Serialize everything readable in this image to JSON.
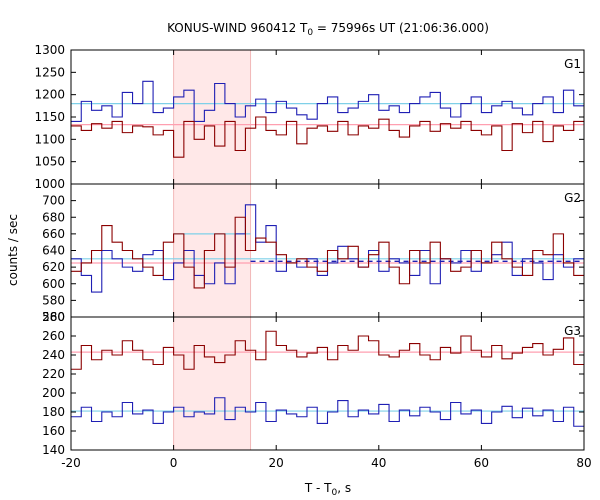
{
  "chart_data": {
    "type": "line",
    "title": "KONUS-WIND 960412 T",
    "title_sub": "0",
    "title_rest": " = 75996s UT (21:06:36.000)",
    "xlabel": "T - T",
    "xlabel_sub": "0",
    "xlabel_rest": ", s",
    "ylabel": "counts / sec",
    "xlim": [
      -20,
      80
    ],
    "xticks": [
      -20,
      0,
      20,
      40,
      60,
      80
    ],
    "bin_width": 2,
    "highlight": {
      "x0": 0,
      "x1": 15,
      "color": "#ffe8e8"
    },
    "colors": {
      "red": "#8b0000",
      "blue": "#1f1fb4",
      "pink": "#ff9fb0",
      "cyan": "#7fd0e8",
      "dash": "#1f1fb4"
    },
    "panels": [
      {
        "name": "G1",
        "ylim": [
          1000,
          1300
        ],
        "yticks": [
          1000,
          1050,
          1100,
          1150,
          1200,
          1250,
          1300
        ],
        "series": [
          {
            "color": "blue",
            "values": [
              1140,
              1185,
              1165,
              1175,
              1150,
              1205,
              1180,
              1230,
              1160,
              1170,
              1195,
              1210,
              1140,
              1165,
              1225,
              1180,
              1150,
              1175,
              1190,
              1160,
              1185,
              1170,
              1155,
              1145,
              1180,
              1195,
              1160,
              1170,
              1185,
              1200,
              1165,
              1175,
              1160,
              1180,
              1195,
              1205,
              1170,
              1150,
              1180,
              1195,
              1160,
              1175,
              1185,
              1170,
              1155,
              1180,
              1195,
              1160,
              1210,
              1175
            ]
          },
          {
            "color": "red",
            "values": [
              1130,
              1120,
              1135,
              1125,
              1140,
              1115,
              1130,
              1128,
              1110,
              1120,
              1060,
              1140,
              1100,
              1130,
              1085,
              1140,
              1075,
              1125,
              1150,
              1120,
              1110,
              1140,
              1090,
              1125,
              1130,
              1118,
              1140,
              1110,
              1130,
              1125,
              1145,
              1120,
              1105,
              1130,
              1140,
              1118,
              1135,
              1125,
              1140,
              1120,
              1110,
              1130,
              1075,
              1135,
              1115,
              1140,
              1095,
              1130,
              1120,
              1140
            ]
          }
        ],
        "refs": [
          {
            "color": "cyan",
            "value": 1180,
            "x0": -20,
            "x1": 80
          },
          {
            "color": "pink",
            "value": 1133,
            "x0": -20,
            "x1": 80
          }
        ]
      },
      {
        "name": "G2",
        "ylim": [
          560,
          720
        ],
        "yticks": [
          560,
          580,
          600,
          620,
          640,
          660,
          680,
          700
        ],
        "series": [
          {
            "color": "blue",
            "values": [
              630,
              610,
              590,
              640,
              630,
              620,
              615,
              635,
              640,
              605,
              625,
              640,
              610,
              600,
              625,
              600,
              660,
              695,
              650,
              670,
              615,
              625,
              620,
              630,
              610,
              625,
              645,
              630,
              620,
              640,
              615,
              630,
              625,
              610,
              640,
              600,
              630,
              625,
              640,
              615,
              625,
              635,
              650,
              610,
              630,
              625,
              605,
              635,
              620,
              630
            ]
          },
          {
            "color": "red",
            "values": [
              615,
              625,
              640,
              670,
              650,
              640,
              630,
              620,
              610,
              650,
              660,
              620,
              595,
              640,
              660,
              620,
              680,
              640,
              655,
              650,
              635,
              625,
              630,
              620,
              615,
              640,
              630,
              645,
              620,
              635,
              650,
              620,
              600,
              640,
              625,
              650,
              630,
              615,
              620,
              640,
              625,
              650,
              630,
              620,
              610,
              640,
              635,
              660,
              625,
              610
            ]
          }
        ],
        "refs": [
          {
            "color": "cyan",
            "value": 630,
            "x0": -20,
            "x1": 80
          },
          {
            "color": "pink",
            "value": 625,
            "x0": -20,
            "x1": 80
          },
          {
            "color": "cyan",
            "value": 660,
            "x0": 0,
            "x1": 15
          },
          {
            "color": "dash",
            "value": 627,
            "x0": 15,
            "x1": 80,
            "dashed": true
          }
        ]
      },
      {
        "name": "G3",
        "ylim": [
          140,
          280
        ],
        "yticks": [
          140,
          160,
          180,
          200,
          220,
          240,
          260,
          280
        ],
        "series": [
          {
            "color": "red",
            "values": [
              225,
              250,
              235,
              245,
              240,
              255,
              245,
              235,
              230,
              248,
              240,
              225,
              250,
              238,
              232,
              240,
              255,
              245,
              235,
              265,
              250,
              245,
              238,
              242,
              248,
              235,
              250,
              245,
              260,
              255,
              240,
              238,
              245,
              252,
              240,
              235,
              248,
              242,
              260,
              245,
              238,
              250,
              236,
              242,
              248,
              252,
              240,
              246,
              258,
              230
            ]
          },
          {
            "color": "blue",
            "values": [
              175,
              185,
              170,
              180,
              175,
              190,
              178,
              182,
              168,
              180,
              185,
              175,
              180,
              178,
              195,
              172,
              185,
              180,
              190,
              170,
              182,
              178,
              175,
              185,
              168,
              180,
              192,
              175,
              182,
              178,
              188,
              170,
              182,
              176,
              185,
              180,
              172,
              190,
              178,
              182,
              168,
              180,
              186,
              174,
              184,
              176,
              182,
              170,
              185,
              165
            ]
          }
        ],
        "refs": [
          {
            "color": "pink",
            "value": 243,
            "x0": -20,
            "x1": 80
          },
          {
            "color": "cyan",
            "value": 181,
            "x0": -20,
            "x1": 80
          }
        ]
      }
    ]
  }
}
